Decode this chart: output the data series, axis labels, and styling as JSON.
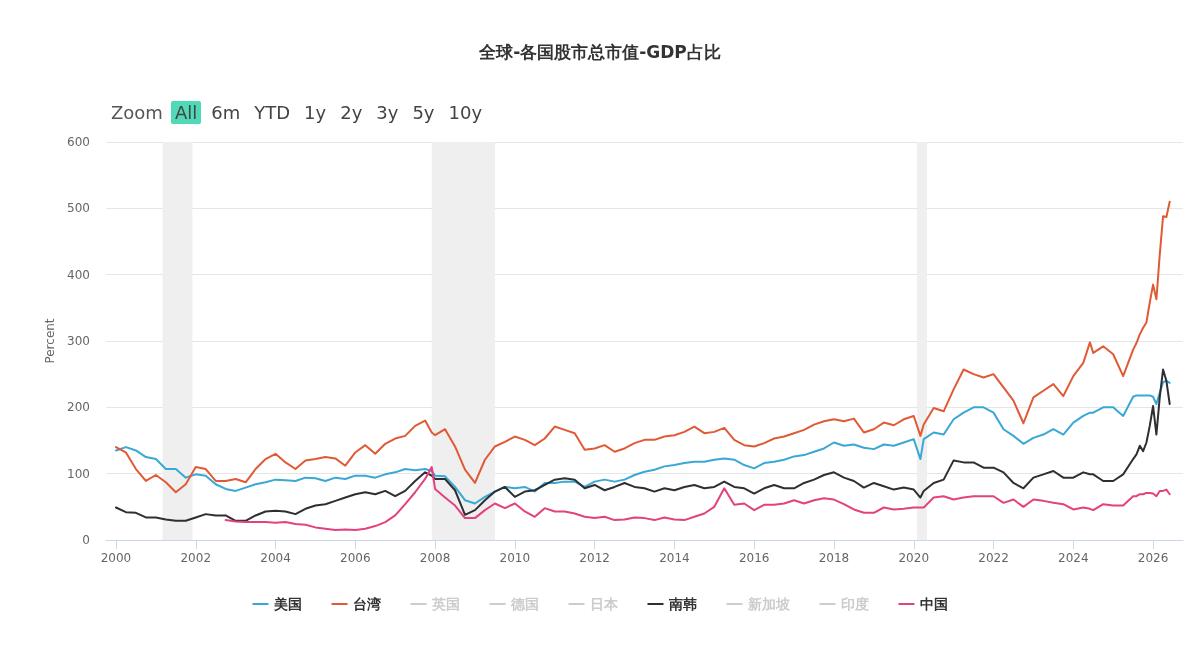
{
  "chart_data": {
    "type": "line",
    "title": "全球-各国股市总市值-GDP占比",
    "ylabel": "Percent",
    "annotations": [
      "Zoom",
      "All",
      "6m",
      "YTD",
      "1y",
      "2y",
      "3y",
      "5y",
      "10y"
    ],
    "x": [
      "2000-01",
      "2000-04",
      "2000-07",
      "2000-10",
      "2001-01",
      "2001-04",
      "2001-07",
      "2001-10",
      "2002-01",
      "2002-04",
      "2002-07",
      "2002-10",
      "2003-01",
      "2003-04",
      "2003-07",
      "2003-10",
      "2004-01",
      "2004-04",
      "2004-07",
      "2004-10",
      "2005-01",
      "2005-04",
      "2005-07",
      "2005-10",
      "2006-01",
      "2006-04",
      "2006-07",
      "2006-10",
      "2007-01",
      "2007-04",
      "2007-07",
      "2007-10",
      "2007-12",
      "2008-01",
      "2008-04",
      "2008-07",
      "2008-10",
      "2009-01",
      "2009-04",
      "2009-07",
      "2009-10",
      "2010-01",
      "2010-04",
      "2010-07",
      "2010-10",
      "2011-01",
      "2011-04",
      "2011-07",
      "2011-10",
      "2012-01",
      "2012-04",
      "2012-07",
      "2012-10",
      "2013-01",
      "2013-04",
      "2013-07",
      "2013-10",
      "2014-01",
      "2014-04",
      "2014-07",
      "2014-10",
      "2015-01",
      "2015-04",
      "2015-07",
      "2015-10",
      "2016-01",
      "2016-04",
      "2016-07",
      "2016-10",
      "2017-01",
      "2017-04",
      "2017-07",
      "2017-10",
      "2018-01",
      "2018-04",
      "2018-07",
      "2018-10",
      "2019-01",
      "2019-04",
      "2019-07",
      "2019-10",
      "2020-01",
      "2020-03",
      "2020-04",
      "2020-07",
      "2020-10",
      "2021-01",
      "2021-04",
      "2021-07",
      "2021-10",
      "2022-01",
      "2022-04",
      "2022-07",
      "2022-10",
      "2023-01",
      "2023-04",
      "2023-07",
      "2023-10",
      "2024-01",
      "2024-04",
      "2024-06",
      "2024-07",
      "2024-10",
      "2025-01",
      "2025-04",
      "2025-07",
      "2025-08",
      "2025-09",
      "2025-10",
      "2025-11",
      "2025-12",
      "2026-01",
      "2026-02",
      "2026-03",
      "2026-04",
      "2026-05",
      "2026-06"
    ],
    "series": [
      {
        "name": "美国",
        "color": "#3aa8d4",
        "values": [
          135,
          140,
          135,
          125,
          122,
          107,
          107,
          94,
          99,
          97,
          84,
          77,
          74,
          79,
          84,
          87,
          91,
          90,
          89,
          94,
          93,
          89,
          94,
          92,
          97,
          97,
          94,
          99,
          102,
          107,
          105,
          107,
          104,
          97,
          96,
          80,
          60,
          55,
          65,
          73,
          80,
          78,
          80,
          73,
          86,
          86,
          88,
          88,
          80,
          88,
          91,
          88,
          91,
          98,
          103,
          106,
          111,
          113,
          116,
          118,
          118,
          121,
          123,
          121,
          113,
          108,
          116,
          118,
          121,
          126,
          128,
          133,
          138,
          147,
          142,
          144,
          139,
          137,
          144,
          142,
          147,
          152,
          122,
          152,
          162,
          159,
          182,
          192,
          200,
          200,
          192,
          167,
          157,
          145,
          154,
          159,
          167,
          159,
          177,
          187,
          192,
          192,
          200,
          200,
          187,
          216,
          218,
          218,
          218,
          218,
          218,
          216,
          205,
          222,
          238,
          240,
          237
        ]
      },
      {
        "name": "台湾",
        "color": "#e05a35",
        "values": [
          140,
          132,
          107,
          89,
          98,
          87,
          72,
          84,
          110,
          107,
          89,
          89,
          92,
          87,
          107,
          122,
          130,
          117,
          107,
          120,
          122,
          125,
          123,
          112,
          132,
          143,
          130,
          145,
          153,
          157,
          172,
          180,
          162,
          158,
          167,
          141,
          106,
          86,
          121,
          141,
          148,
          156,
          151,
          143,
          153,
          171,
          166,
          161,
          136,
          138,
          143,
          133,
          138,
          146,
          151,
          151,
          156,
          158,
          163,
          171,
          161,
          163,
          169,
          151,
          143,
          141,
          146,
          153,
          156,
          161,
          166,
          174,
          179,
          182,
          179,
          183,
          162,
          167,
          177,
          173,
          182,
          187,
          157,
          174,
          199,
          194,
          227,
          257,
          250,
          245,
          250,
          230,
          210,
          176,
          215,
          225,
          235,
          217,
          247,
          267,
          298,
          282,
          292,
          280,
          247,
          287,
          297,
          310,
          320,
          328,
          358,
          385,
          363,
          430,
          488,
          487,
          510
        ]
      },
      {
        "name": "英国",
        "values": [
          null,
          null,
          null,
          null,
          null,
          null,
          null,
          null,
          null,
          null,
          null,
          null,
          null,
          null,
          null,
          null,
          null,
          null,
          null,
          null,
          null,
          null,
          null,
          null,
          null,
          null,
          null,
          null,
          null,
          null,
          null,
          null,
          null,
          null,
          null,
          null,
          null,
          null,
          null,
          null,
          null,
          null,
          null,
          null,
          null,
          null,
          null,
          null,
          null,
          null,
          null,
          null,
          null,
          null,
          null,
          null,
          null,
          null,
          null,
          null,
          null,
          null,
          null,
          null,
          null,
          null,
          null,
          null,
          null,
          null,
          null,
          null,
          null,
          null,
          null,
          null,
          null,
          null,
          null,
          null,
          null,
          null,
          null,
          null,
          null,
          null,
          null,
          null,
          null,
          null,
          null,
          null,
          null,
          null,
          null,
          null,
          null,
          null,
          null,
          null,
          null,
          null,
          null,
          null,
          null,
          null,
          null,
          null,
          null,
          null,
          null,
          null,
          null,
          null,
          null,
          null,
          null
        ]
      },
      {
        "name": "德国",
        "values": [
          null,
          null,
          null,
          null,
          null,
          null,
          null,
          null,
          null,
          null,
          null,
          null,
          null,
          null,
          null,
          null,
          null,
          null,
          null,
          null,
          null,
          null,
          null,
          null,
          null,
          null,
          null,
          null,
          null,
          null,
          null,
          null,
          null,
          null,
          null,
          null,
          null,
          null,
          null,
          null,
          null,
          null,
          null,
          null,
          null,
          null,
          null,
          null,
          null,
          null,
          null,
          null,
          null,
          null,
          null,
          null,
          null,
          null,
          null,
          null,
          null,
          null,
          null,
          null,
          null,
          null,
          null,
          null,
          null,
          null,
          null,
          null,
          null,
          null,
          null,
          null,
          null,
          null,
          null,
          null,
          null,
          null,
          null,
          null,
          null,
          null,
          null,
          null,
          null,
          null,
          null,
          null,
          null,
          null,
          null,
          null,
          null,
          null,
          null,
          null,
          null,
          null,
          null,
          null,
          null,
          null,
          null,
          null,
          null,
          null,
          null,
          null,
          null,
          null,
          null,
          null,
          null
        ]
      },
      {
        "name": "日本",
        "values": [
          null,
          null,
          null,
          null,
          null,
          null,
          null,
          null,
          null,
          null,
          null,
          null,
          null,
          null,
          null,
          null,
          null,
          null,
          null,
          null,
          null,
          null,
          null,
          null,
          null,
          null,
          null,
          null,
          null,
          null,
          null,
          null,
          null,
          null,
          null,
          null,
          null,
          null,
          null,
          null,
          null,
          null,
          null,
          null,
          null,
          null,
          null,
          null,
          null,
          null,
          null,
          null,
          null,
          null,
          null,
          null,
          null,
          null,
          null,
          null,
          null,
          null,
          null,
          null,
          null,
          null,
          null,
          null,
          null,
          null,
          null,
          null,
          null,
          null,
          null,
          null,
          null,
          null,
          null,
          null,
          null,
          null,
          null,
          null,
          null,
          null,
          null,
          null,
          null,
          null,
          null,
          null,
          null,
          null,
          null,
          null,
          null,
          null,
          null,
          null,
          null,
          null,
          null,
          null,
          null,
          null,
          null,
          null,
          null,
          null,
          null,
          null,
          null,
          null,
          null,
          null,
          null
        ]
      },
      {
        "name": "南韩",
        "color": "#2d2f33",
        "values": [
          49,
          42,
          41,
          34,
          34,
          31,
          29,
          29,
          34,
          39,
          37,
          37,
          29,
          29,
          37,
          43,
          44,
          43,
          39,
          47,
          52,
          54,
          59,
          64,
          69,
          72,
          69,
          74,
          66,
          74,
          89,
          102,
          97,
          92,
          92,
          75,
          38,
          45,
          60,
          73,
          80,
          65,
          73,
          75,
          83,
          91,
          93,
          91,
          78,
          83,
          75,
          80,
          86,
          80,
          78,
          73,
          78,
          75,
          80,
          83,
          78,
          80,
          88,
          80,
          78,
          70,
          78,
          83,
          78,
          78,
          86,
          91,
          98,
          102,
          94,
          89,
          79,
          86,
          81,
          76,
          79,
          76,
          64,
          74,
          86,
          91,
          120,
          117,
          117,
          109,
          109,
          102,
          86,
          78,
          94,
          99,
          104,
          94,
          94,
          102,
          99,
          99,
          89,
          89,
          99,
          122,
          129,
          142,
          134,
          147,
          172,
          202,
          159,
          215,
          257,
          240,
          205
        ]
      },
      {
        "name": "新加坡",
        "values": [
          null,
          null,
          null,
          null,
          null,
          null,
          null,
          null,
          null,
          null,
          null,
          null,
          null,
          null,
          null,
          null,
          null,
          null,
          null,
          null,
          null,
          null,
          null,
          null,
          null,
          null,
          null,
          null,
          null,
          null,
          null,
          null,
          null,
          null,
          null,
          null,
          null,
          null,
          null,
          null,
          null,
          null,
          null,
          null,
          null,
          null,
          null,
          null,
          null,
          null,
          null,
          null,
          null,
          null,
          null,
          null,
          null,
          null,
          null,
          null,
          null,
          null,
          null,
          null,
          null,
          null,
          null,
          null,
          null,
          null,
          null,
          null,
          null,
          null,
          null,
          null,
          null,
          null,
          null,
          null,
          null,
          null,
          null,
          null,
          null,
          null,
          null,
          null,
          null,
          null,
          null,
          null,
          null,
          null,
          null,
          null,
          null,
          null,
          null,
          null,
          null,
          null,
          null,
          null,
          null,
          null,
          null,
          null,
          null,
          null,
          null,
          null,
          null,
          null,
          null,
          null,
          null
        ]
      },
      {
        "name": "印度",
        "values": [
          null,
          null,
          null,
          null,
          null,
          null,
          null,
          null,
          null,
          null,
          null,
          null,
          null,
          null,
          null,
          null,
          null,
          null,
          null,
          null,
          null,
          null,
          null,
          null,
          null,
          null,
          null,
          null,
          null,
          null,
          null,
          null,
          null,
          null,
          null,
          null,
          null,
          null,
          null,
          null,
          null,
          null,
          null,
          null,
          null,
          null,
          null,
          null,
          null,
          null,
          null,
          null,
          null,
          null,
          null,
          null,
          null,
          null,
          null,
          null,
          null,
          null,
          null,
          null,
          null,
          null,
          null,
          null,
          null,
          null,
          null,
          null,
          null,
          null,
          null,
          null,
          null,
          null,
          null,
          null,
          null,
          null,
          null,
          null,
          null,
          null,
          null,
          null,
          null,
          null,
          null,
          null,
          null,
          null,
          null,
          null,
          null,
          null,
          null,
          null,
          null,
          null,
          null,
          null,
          null,
          null,
          null,
          null,
          null,
          null,
          null,
          null,
          null,
          null,
          null,
          null,
          null
        ]
      },
      {
        "name": "中国",
        "color": "#e4417f",
        "values": [
          null,
          null,
          null,
          null,
          null,
          null,
          null,
          null,
          null,
          null,
          null,
          30,
          28,
          27,
          27,
          27,
          26,
          27,
          24,
          23,
          19,
          17,
          15,
          16,
          15,
          17,
          21,
          27,
          37,
          54,
          72,
          92,
          110,
          77,
          64,
          52,
          33,
          33,
          45,
          55,
          48,
          55,
          43,
          35,
          48,
          43,
          43,
          40,
          35,
          33,
          35,
          30,
          31,
          34,
          33,
          30,
          34,
          31,
          30,
          35,
          40,
          50,
          78,
          53,
          55,
          45,
          53,
          53,
          55,
          60,
          55,
          60,
          63,
          61,
          54,
          46,
          41,
          41,
          49,
          46,
          47,
          49,
          49,
          49,
          64,
          66,
          61,
          64,
          66,
          66,
          66,
          56,
          61,
          50,
          61,
          59,
          56,
          54,
          46,
          49,
          47,
          45,
          54,
          52,
          52,
          66,
          66,
          69,
          69,
          71,
          71,
          70,
          66,
          74,
          74,
          76,
          69
        ]
      }
    ],
    "xlim": [
      "1999-10",
      "2026-10"
    ],
    "xticks": [
      "2000",
      "2002",
      "2004",
      "2006",
      "2008",
      "2010",
      "2012",
      "2014",
      "2016",
      "2018",
      "2020",
      "2022",
      "2024",
      "2026"
    ],
    "ylim": [
      0,
      600
    ],
    "yticks": [
      0,
      100,
      200,
      300,
      400,
      500,
      600
    ],
    "bands": [
      {
        "axis": "x",
        "from": "2001-03",
        "to": "2001-12",
        "color": "#efefef"
      },
      {
        "axis": "x",
        "from": "2007-12",
        "to": "2009-07",
        "color": "#efefef"
      },
      {
        "axis": "x",
        "from": "2020-02",
        "to": "2020-05",
        "color": "#efefef"
      }
    ],
    "grid": "y",
    "legend": "bottom"
  }
}
